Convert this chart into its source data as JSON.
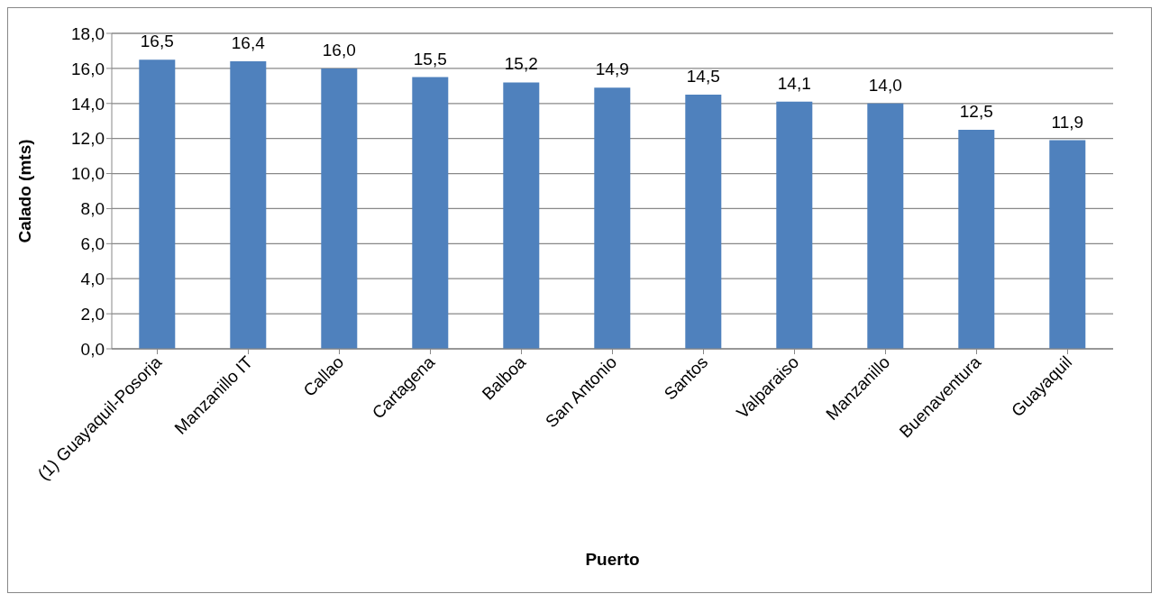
{
  "chart_data": {
    "type": "bar",
    "xlabel": "Puerto",
    "ylabel": "Calado (mts)",
    "categories": [
      "(1) Guayaquil-Posorja",
      "Manzanillo IT",
      "Callao",
      "Cartagena",
      "Balboa",
      "San Antonio",
      "Santos",
      "Valparaiso",
      "Manzanillo",
      "Buenaventura",
      "Guayaquil"
    ],
    "values": [
      16.5,
      16.4,
      16.0,
      15.5,
      15.2,
      14.9,
      14.5,
      14.1,
      14.0,
      12.5,
      11.9
    ],
    "value_labels": [
      "16,5",
      "16,4",
      "16,0",
      "15,5",
      "15,2",
      "14,9",
      "14,5",
      "14,1",
      "14,0",
      "12,5",
      "11,9"
    ],
    "color": "#4f81bd",
    "ylim": [
      0,
      18
    ],
    "yticks": [
      {
        "value": 0,
        "label": "0,0"
      },
      {
        "value": 2,
        "label": "2,0"
      },
      {
        "value": 4,
        "label": "4,0"
      },
      {
        "value": 6,
        "label": "6,0"
      },
      {
        "value": 8,
        "label": "8,0"
      },
      {
        "value": 10,
        "label": "10,0"
      },
      {
        "value": 12,
        "label": "12,0"
      },
      {
        "value": 14,
        "label": "14,0"
      },
      {
        "value": 16,
        "label": "16,0"
      },
      {
        "value": 18,
        "label": "18,0"
      }
    ],
    "grid": "y",
    "legend": false
  }
}
